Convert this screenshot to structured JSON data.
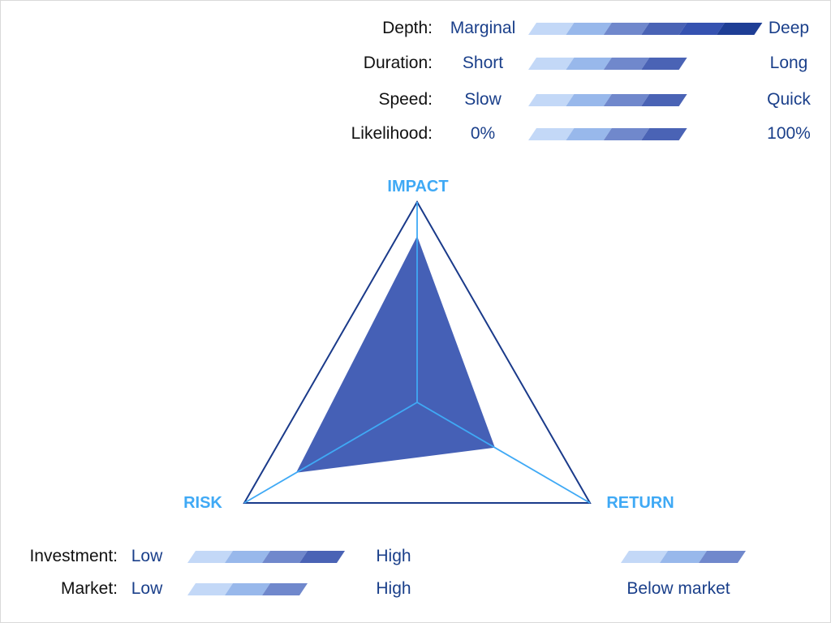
{
  "scales_top": [
    {
      "label": "Depth:",
      "low": "Marginal",
      "high": "Deep",
      "level": 6
    },
    {
      "label": "Duration:",
      "low": "Short",
      "high": "Long",
      "level": 4
    },
    {
      "label": "Speed:",
      "low": "Slow",
      "high": "Quick",
      "level": 4
    },
    {
      "label": "Likelihood:",
      "low": "0%",
      "high": "100%",
      "level": 4
    }
  ],
  "scales_bottom": [
    {
      "label": "Investment:",
      "low": "Low",
      "high": "High",
      "level": 4
    },
    {
      "label": "Market:",
      "low": "Low",
      "high": "High",
      "level": 3
    }
  ],
  "return_scale": {
    "level": 3,
    "caption": "Below market"
  },
  "max_level": 6,
  "chart_data": {
    "type": "radar",
    "axes": [
      "IMPACT",
      "RISK",
      "RETURN"
    ],
    "max": 1,
    "values": [
      0.83,
      0.7,
      0.45
    ]
  },
  "colors": {
    "segments": [
      "#c3d8f7",
      "#98b8eb",
      "#7088cc",
      "#4a63b5",
      "#3552b0",
      "#1e3e95"
    ],
    "outline": "#1a3a8a",
    "axis": "#3fa9f5",
    "fill": "#4560b6"
  }
}
